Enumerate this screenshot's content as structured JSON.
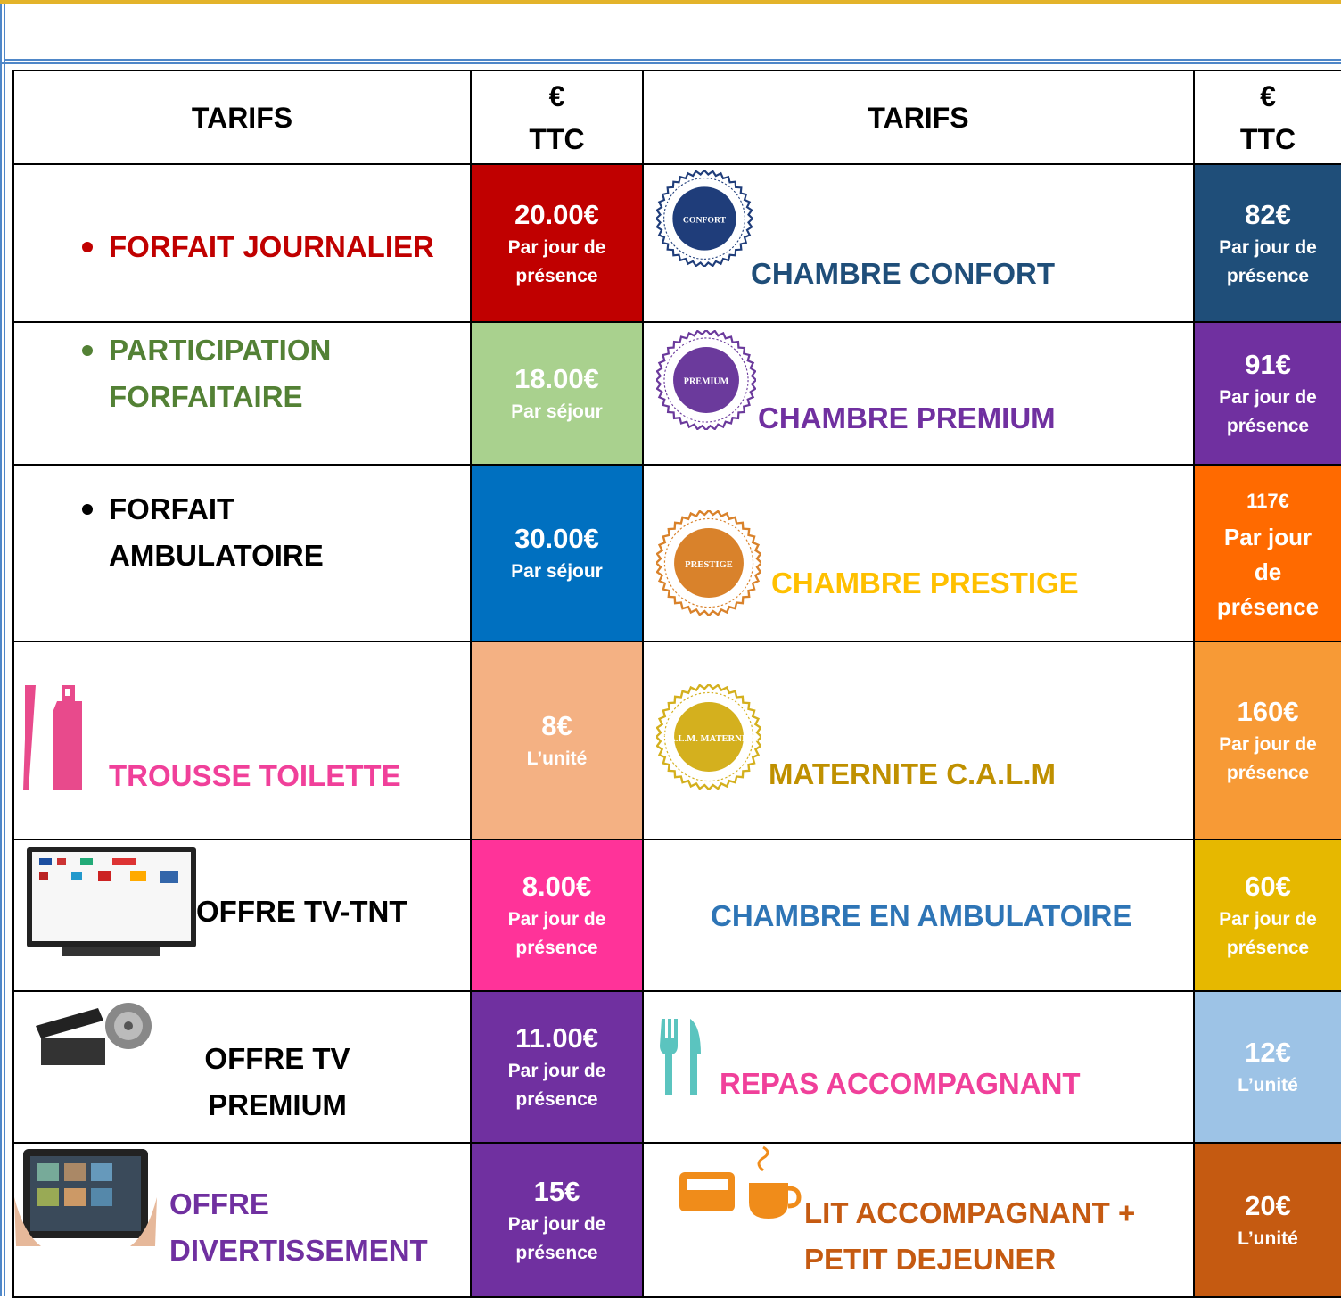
{
  "table": {
    "header": [
      "TARIFS",
      "€\nTTC",
      "TARIFS",
      "€\nTTC"
    ],
    "rows": [
      {
        "left": {
          "label": "FORFAIT JOURNALIER",
          "price": "20.00€",
          "unit": "Par jour de\nprésence"
        },
        "right": {
          "badge": "CONFORT",
          "label": "CHAMBRE CONFORT",
          "price": "82€",
          "unit": "Par jour de\nprésence"
        }
      },
      {
        "left": {
          "label": "PARTICIPATION\nFORFAITAIRE",
          "price": "18.00€",
          "unit": "Par séjour"
        },
        "right": {
          "badge": "PREMIUM",
          "label": "CHAMBRE PREMIUM",
          "price": "91€",
          "unit": "Par jour de\nprésence"
        }
      },
      {
        "left": {
          "label": "FORFAIT\nAMBULATOIRE",
          "price": "30.00€",
          "unit": "Par séjour"
        },
        "right": {
          "badge": "PRESTIGE",
          "label": "CHAMBRE PRESTIGE",
          "price": "117€",
          "unit": "Par jour\nde\nprésence"
        }
      },
      {
        "left": {
          "label": "TROUSSE TOILETTE",
          "price": "8€",
          "unit": "L’unité"
        },
        "right": {
          "badge": "C.A.L.M.\nMATERNITE",
          "label": "MATERNITE C.A.L.M",
          "price": "160€",
          "unit": "Par jour de\nprésence"
        }
      },
      {
        "left": {
          "label": "OFFRE TV-TNT",
          "price": "8.00€",
          "unit": "Par jour de\nprésence"
        },
        "right": {
          "label": "CHAMBRE EN AMBULATOIRE",
          "price": "60€",
          "unit": "Par jour de\nprésence"
        }
      },
      {
        "left": {
          "label": "OFFRE TV\nPREMIUM",
          "price": "11.00€",
          "unit": "Par jour de\nprésence"
        },
        "right": {
          "label": "REPAS ACCOMPAGNANT",
          "price": "12€",
          "unit": "L’unité"
        }
      },
      {
        "left": {
          "label": "OFFRE\nDIVERTISSEMENT",
          "price": "15€",
          "unit": "Par jour de\nprésence"
        },
        "right": {
          "label": "LIT ACCOMPAGNANT +\nPETIT DEJEUNER",
          "price": "20€",
          "unit": "L’unité"
        }
      }
    ]
  }
}
